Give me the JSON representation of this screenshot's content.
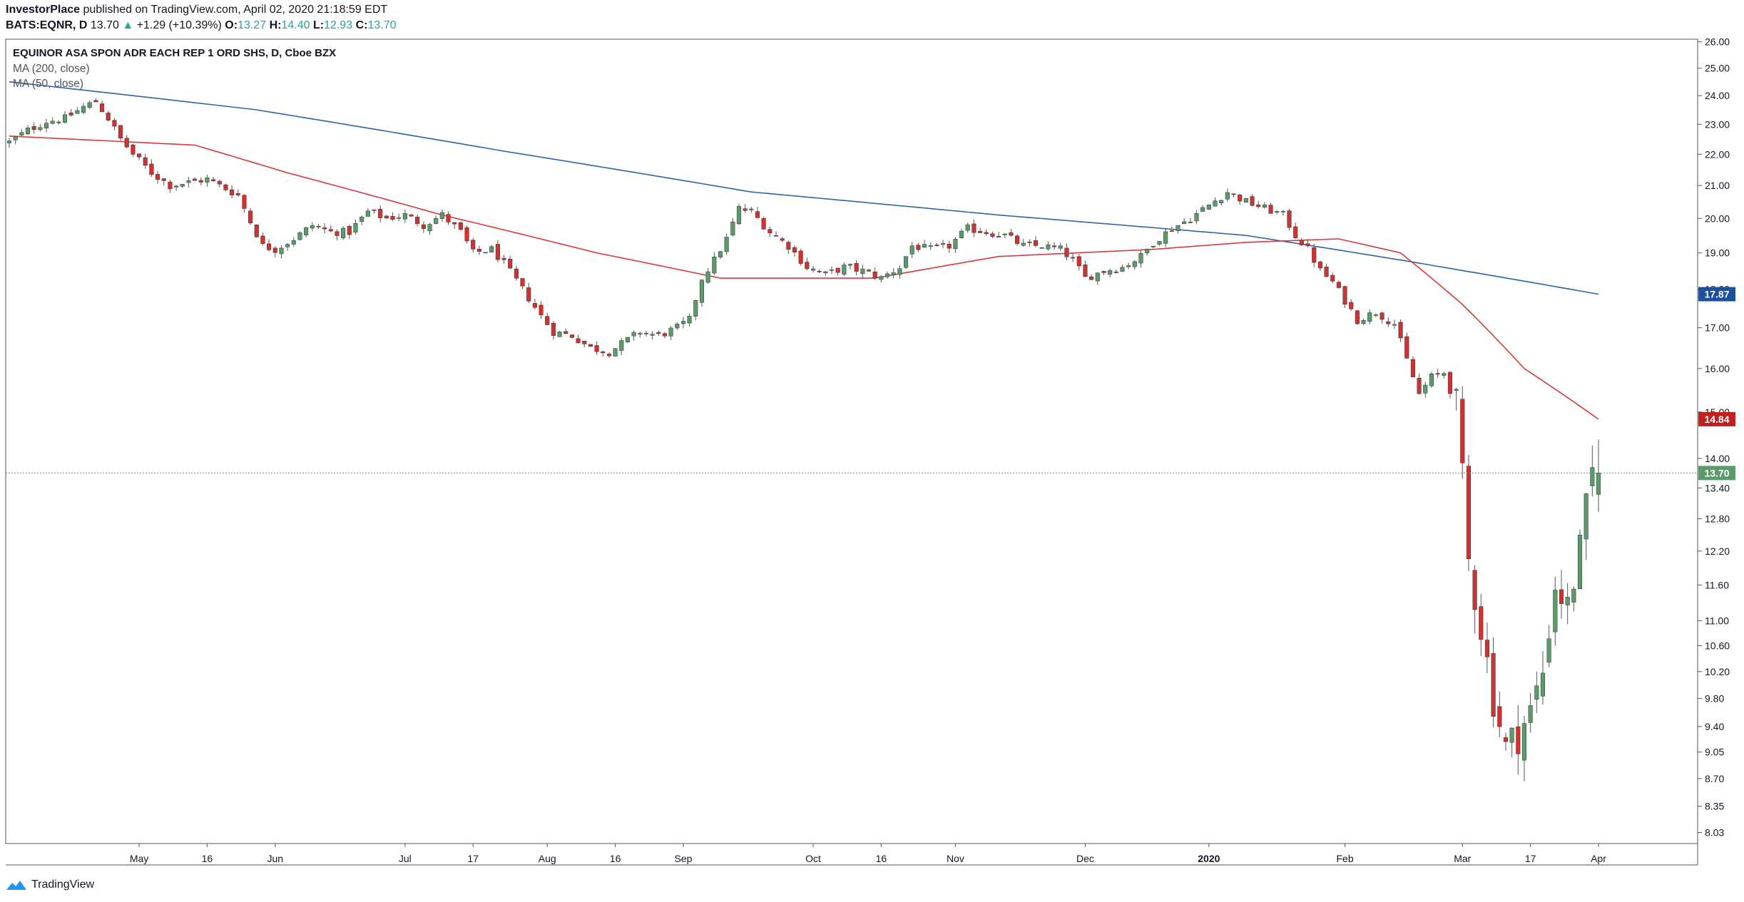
{
  "header": {
    "publisher": "InvestorPlace",
    "published_text": " published on TradingView.com, April 02, 2020 21:18:59 EDT",
    "symbol": "BATS:EQNR, D",
    "last": "13.70",
    "change_arrow": "▲",
    "change": "+1.29 (+10.39%)",
    "o_label": "O:",
    "o_value": "13.27",
    "h_label": "H:",
    "h_value": "14.40",
    "l_label": "L:",
    "l_value": "12.93",
    "c_label": "C:",
    "c_value": "13.70"
  },
  "legend": {
    "title": "EQUINOR ASA SPON ADR EACH REP 1 ORD SHS, D, Cboe BZX",
    "ma200": "MA (200, close)",
    "ma50": "MA (50, close)"
  },
  "footer": {
    "brand": "TradingView",
    "logo_icon": "tradingview-logo-icon"
  },
  "colors": {
    "up": "#5b9a6b",
    "down": "#d03131",
    "wick": "#555555",
    "ma200": "#2e64a8",
    "ma50": "#d43b3b",
    "ma200_badge": "#1b4fa0",
    "ma50_badge": "#c21f1f",
    "last_badge": "#5b9a6b",
    "grid": "#888888"
  },
  "chart_data": {
    "type": "candlestick",
    "y_scale": "log",
    "ylim": [
      7.9,
      26.1
    ],
    "y_ticks": [
      "8.03",
      "8.35",
      "8.70",
      "9.05",
      "9.40",
      "9.80",
      "10.20",
      "10.60",
      "11.00",
      "11.60",
      "12.20",
      "12.80",
      "13.40",
      "14.00",
      "15.00",
      "16.00",
      "17.00",
      "18.00",
      "19.00",
      "20.00",
      "21.00",
      "22.00",
      "23.00",
      "24.00",
      "25.00",
      "26.00"
    ],
    "x_labels": [
      {
        "label": "May",
        "bar": 21
      },
      {
        "label": "16",
        "bar": 32
      },
      {
        "label": "Jun",
        "bar": 43
      },
      {
        "label": "Jul",
        "bar": 64
      },
      {
        "label": "17",
        "bar": 75
      },
      {
        "label": "Aug",
        "bar": 87
      },
      {
        "label": "16",
        "bar": 98
      },
      {
        "label": "Sep",
        "bar": 109
      },
      {
        "label": "Oct",
        "bar": 130
      },
      {
        "label": "16",
        "bar": 141
      },
      {
        "label": "Nov",
        "bar": 153
      },
      {
        "label": "Dec",
        "bar": 174
      },
      {
        "label": "2020",
        "bar": 194
      },
      {
        "label": "Feb",
        "bar": 216
      },
      {
        "label": "Mar",
        "bar": 235
      },
      {
        "label": "17",
        "bar": 246
      },
      {
        "label": "Apr",
        "bar": 257
      }
    ],
    "price_badges": [
      {
        "name": "ma200",
        "value": "17.87"
      },
      {
        "name": "ma50",
        "value": "14.84"
      },
      {
        "name": "last",
        "value": "13.70"
      }
    ],
    "anchors": [
      [
        0,
        22.4
      ],
      [
        3,
        22.8
      ],
      [
        6,
        23.1
      ],
      [
        9,
        23.2
      ],
      [
        12,
        23.6
      ],
      [
        14,
        23.8
      ],
      [
        16,
        23.2
      ],
      [
        18,
        22.5
      ],
      [
        20,
        22.0
      ],
      [
        23,
        21.4
      ],
      [
        26,
        21.0
      ],
      [
        29,
        21.1
      ],
      [
        32,
        21.2
      ],
      [
        35,
        20.9
      ],
      [
        37,
        20.7
      ],
      [
        39,
        19.9
      ],
      [
        41,
        19.2
      ],
      [
        43,
        19.1
      ],
      [
        46,
        19.4
      ],
      [
        49,
        19.8
      ],
      [
        52,
        19.6
      ],
      [
        55,
        19.6
      ],
      [
        58,
        20.2
      ],
      [
        61,
        20.0
      ],
      [
        64,
        20.1
      ],
      [
        67,
        19.8
      ],
      [
        70,
        20.1
      ],
      [
        73,
        19.6
      ],
      [
        75,
        19.0
      ],
      [
        78,
        19.1
      ],
      [
        80,
        18.7
      ],
      [
        83,
        18.0
      ],
      [
        86,
        17.3
      ],
      [
        88,
        16.9
      ],
      [
        91,
        16.8
      ],
      [
        94,
        16.5
      ],
      [
        97,
        16.4
      ],
      [
        100,
        16.7
      ],
      [
        102,
        16.9
      ],
      [
        105,
        16.8
      ],
      [
        108,
        17.0
      ],
      [
        110,
        17.2
      ],
      [
        112,
        18.3
      ],
      [
        114,
        18.8
      ],
      [
        116,
        19.4
      ],
      [
        118,
        20.3
      ],
      [
        120,
        20.2
      ],
      [
        123,
        19.6
      ],
      [
        126,
        19.2
      ],
      [
        129,
        18.6
      ],
      [
        132,
        18.4
      ],
      [
        135,
        18.6
      ],
      [
        138,
        18.5
      ],
      [
        141,
        18.3
      ],
      [
        144,
        18.6
      ],
      [
        146,
        19.2
      ],
      [
        149,
        19.1
      ],
      [
        152,
        19.2
      ],
      [
        155,
        19.7
      ],
      [
        158,
        19.6
      ],
      [
        161,
        19.5
      ],
      [
        164,
        19.2
      ],
      [
        167,
        19.2
      ],
      [
        170,
        19.1
      ],
      [
        172,
        18.8
      ],
      [
        174,
        18.3
      ],
      [
        177,
        18.5
      ],
      [
        180,
        18.6
      ],
      [
        183,
        18.9
      ],
      [
        185,
        19.3
      ],
      [
        188,
        19.7
      ],
      [
        191,
        20.0
      ],
      [
        194,
        20.4
      ],
      [
        197,
        20.8
      ],
      [
        200,
        20.5
      ],
      [
        203,
        20.3
      ],
      [
        206,
        20.1
      ],
      [
        208,
        19.5
      ],
      [
        210,
        19.1
      ],
      [
        212,
        18.5
      ],
      [
        214,
        18.2
      ],
      [
        216,
        17.7
      ],
      [
        218,
        17.2
      ],
      [
        221,
        17.4
      ],
      [
        224,
        17.1
      ],
      [
        226,
        16.2
      ],
      [
        228,
        15.4
      ],
      [
        230,
        15.8
      ],
      [
        232,
        15.9
      ],
      [
        234,
        15.1
      ],
      [
        236,
        12.0
      ],
      [
        238,
        10.9
      ],
      [
        240,
        9.8
      ],
      [
        242,
        9.1
      ],
      [
        244,
        9.3
      ],
      [
        246,
        9.6
      ],
      [
        248,
        10.2
      ],
      [
        250,
        11.6
      ],
      [
        252,
        11.2
      ],
      [
        254,
        12.2
      ],
      [
        256,
        13.7
      ]
    ],
    "ma200_anchors": [
      [
        0,
        24.5
      ],
      [
        40,
        23.5
      ],
      [
        80,
        22.1
      ],
      [
        120,
        20.8
      ],
      [
        160,
        20.1
      ],
      [
        200,
        19.5
      ],
      [
        225,
        18.8
      ],
      [
        257,
        17.87
      ]
    ],
    "ma50_anchors": [
      [
        0,
        22.6
      ],
      [
        30,
        22.3
      ],
      [
        45,
        21.4
      ],
      [
        70,
        20.1
      ],
      [
        95,
        19.0
      ],
      [
        115,
        18.3
      ],
      [
        140,
        18.3
      ],
      [
        160,
        18.9
      ],
      [
        185,
        19.1
      ],
      [
        200,
        19.3
      ],
      [
        215,
        19.4
      ],
      [
        225,
        19.0
      ],
      [
        235,
        17.6
      ],
      [
        245,
        16.0
      ],
      [
        257,
        14.84
      ]
    ]
  }
}
